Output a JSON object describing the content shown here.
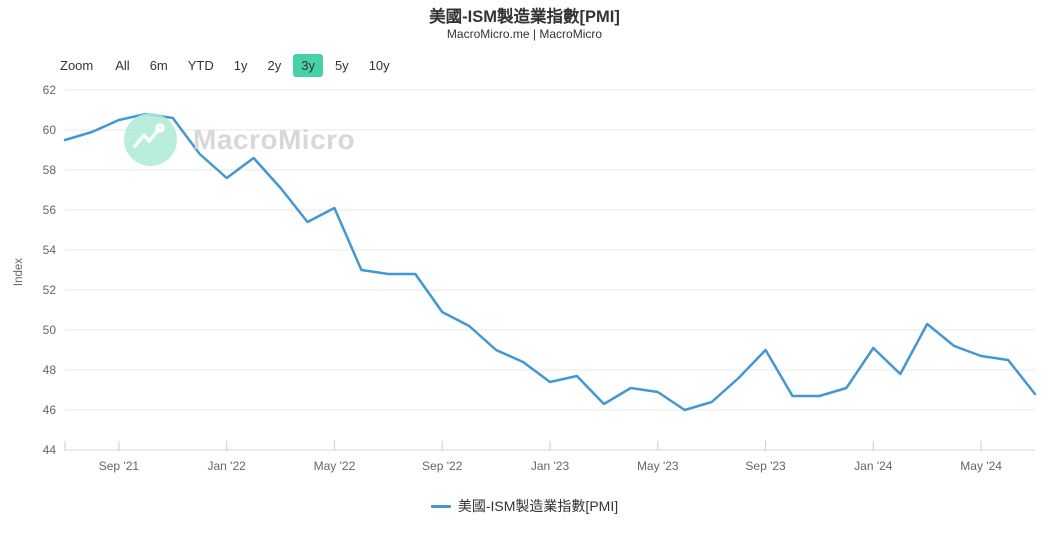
{
  "header": {
    "title": "美國-ISM製造業指數[PMI]",
    "subtitle": "MacroMicro.me | MacroMicro"
  },
  "toolbar": {
    "label": "Zoom",
    "options": [
      "All",
      "6m",
      "YTD",
      "1y",
      "2y",
      "3y",
      "5y",
      "10y"
    ],
    "active": "3y",
    "active_bg": "#47d1a7"
  },
  "watermark": {
    "text": "MacroMicro",
    "logo": "macromicro-logo",
    "circle_color": "#aeebd6"
  },
  "legend": {
    "label": "美國-ISM製造業指數[PMI]"
  },
  "chart_data": {
    "type": "line",
    "title": "美國-ISM製造業指數[PMI]",
    "subtitle": "MacroMicro.me | MacroMicro",
    "xlabel": "",
    "ylabel": "Index",
    "ylim": [
      44,
      62
    ],
    "y_tick_step": 2,
    "grid": true,
    "legend_position": "bottom",
    "line_color": "#4398d4",
    "grid_color": "#e7e7e7",
    "axis_label_color": "#666666",
    "x": [
      "2021-07",
      "2021-08",
      "2021-09",
      "2021-10",
      "2021-11",
      "2021-12",
      "2022-01",
      "2022-02",
      "2022-03",
      "2022-04",
      "2022-05",
      "2022-06",
      "2022-07",
      "2022-08",
      "2022-09",
      "2022-10",
      "2022-11",
      "2022-12",
      "2023-01",
      "2023-02",
      "2023-03",
      "2023-04",
      "2023-05",
      "2023-06",
      "2023-07",
      "2023-08",
      "2023-09",
      "2023-10",
      "2023-11",
      "2023-12",
      "2024-01",
      "2024-02",
      "2024-03",
      "2024-04",
      "2024-05",
      "2024-06",
      "2024-07"
    ],
    "series": [
      {
        "name": "美國-ISM製造業指數[PMI]",
        "values": [
          59.5,
          59.9,
          60.5,
          60.8,
          60.6,
          58.8,
          57.6,
          58.6,
          57.1,
          55.4,
          56.1,
          53.0,
          52.8,
          52.8,
          50.9,
          50.2,
          49.0,
          48.4,
          47.4,
          47.7,
          46.3,
          47.1,
          46.9,
          46.0,
          46.4,
          47.6,
          49.0,
          46.7,
          46.7,
          47.1,
          49.1,
          47.8,
          50.3,
          49.2,
          48.7,
          48.5,
          46.8
        ]
      }
    ],
    "x_ticks": [
      {
        "label": "Sep '21",
        "index": 2
      },
      {
        "label": "Jan '22",
        "index": 6
      },
      {
        "label": "May '22",
        "index": 10
      },
      {
        "label": "Sep '22",
        "index": 14
      },
      {
        "label": "Jan '23",
        "index": 18
      },
      {
        "label": "May '23",
        "index": 22
      },
      {
        "label": "Sep '23",
        "index": 26
      },
      {
        "label": "Jan '24",
        "index": 30
      },
      {
        "label": "May '24",
        "index": 34
      }
    ],
    "y_ticks": [
      44,
      46,
      48,
      50,
      52,
      54,
      56,
      58,
      60,
      62
    ]
  }
}
